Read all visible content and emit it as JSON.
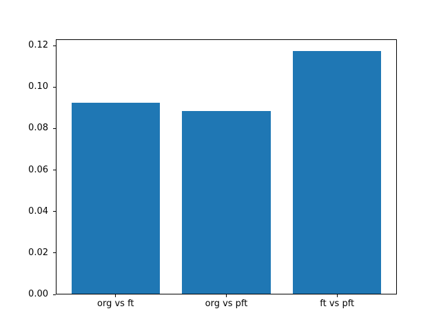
{
  "chart_data": {
    "type": "bar",
    "categories": [
      "org vs ft",
      "org vs pft",
      "ft vs pft"
    ],
    "values": [
      0.092,
      0.088,
      0.117
    ],
    "title": "",
    "xlabel": "",
    "ylabel": "",
    "ylim": [
      0,
      0.123
    ],
    "yticks": [
      "0.00",
      "0.02",
      "0.04",
      "0.06",
      "0.08",
      "0.10",
      "0.12"
    ],
    "ytick_values": [
      0.0,
      0.02,
      0.04,
      0.06,
      0.08,
      0.1,
      0.12
    ],
    "bar_color": "#1f77b4",
    "bar_width_fraction": 0.8,
    "x_margin": 0.54,
    "grid": false,
    "legend": null,
    "background_color": "#ffffff",
    "spine_color": "#000000"
  }
}
